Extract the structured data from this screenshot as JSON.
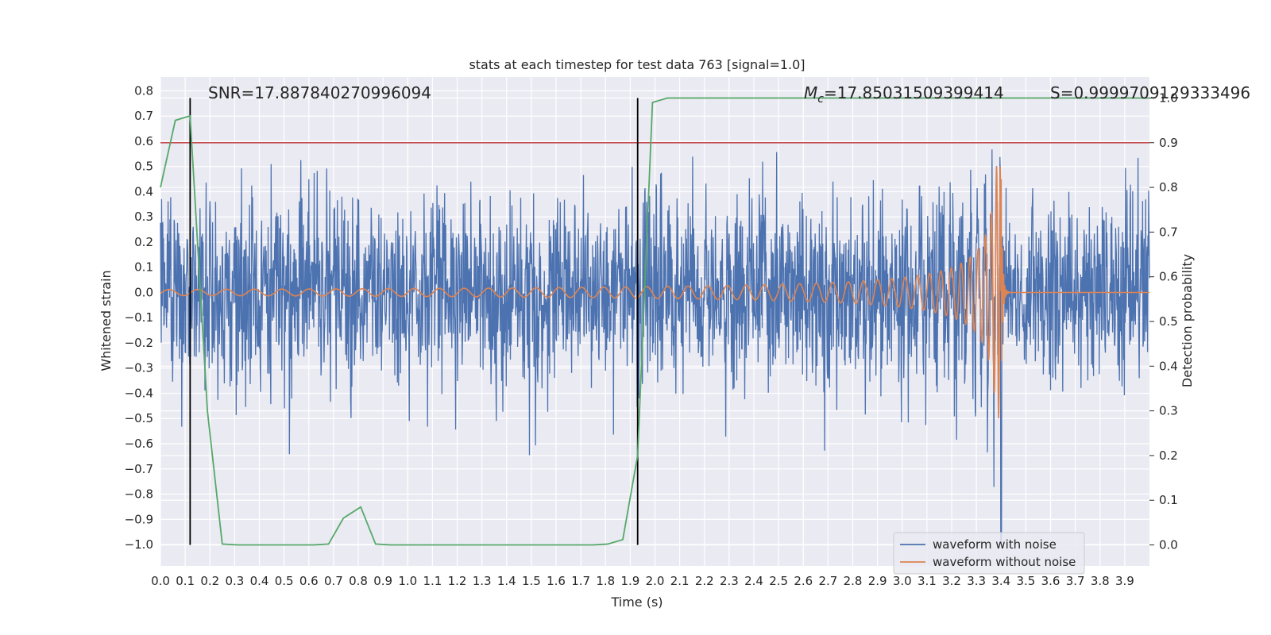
{
  "chart_data": {
    "type": "line",
    "title": "stats at each timestep for test data 763 [signal=1.0]",
    "xlabel": "Time (s)",
    "ylabel": "Whitened strain",
    "y2label": "Detection probability",
    "xlim": [
      0.0,
      4.0
    ],
    "ylim": [
      -1.085,
      0.855
    ],
    "y2lim": [
      -0.047,
      1.047
    ],
    "grid": true,
    "legend_position": "lower-right",
    "x_ticks": [
      "0.0",
      "0.1",
      "0.2",
      "0.3",
      "0.4",
      "0.5",
      "0.6",
      "0.7",
      "0.8",
      "0.9",
      "1.0",
      "1.1",
      "1.2",
      "1.3",
      "1.4",
      "1.5",
      "1.6",
      "1.7",
      "1.8",
      "1.9",
      "2.0",
      "2.1",
      "2.2",
      "2.3",
      "2.4",
      "2.5",
      "2.6",
      "2.7",
      "2.8",
      "2.9",
      "3.0",
      "3.1",
      "3.2",
      "3.3",
      "3.4",
      "3.5",
      "3.6",
      "3.7",
      "3.8",
      "3.9"
    ],
    "y_ticks": [
      "0.8",
      "0.7",
      "0.6",
      "0.5",
      "0.4",
      "0.3",
      "0.2",
      "0.1",
      "0.0",
      "−0.1",
      "−0.2",
      "−0.3",
      "−0.4",
      "−0.5",
      "−0.6",
      "−0.7",
      "−0.8",
      "−0.9",
      "−1.0"
    ],
    "y2_ticks": [
      "1.0",
      "0.9",
      "0.8",
      "0.7",
      "0.6",
      "0.5",
      "0.4",
      "0.3",
      "0.2",
      "0.1",
      "0.0"
    ],
    "annotations": {
      "snr": "SNR=17.887840270996094",
      "mc_symbol": "M",
      "mc_sub": "c",
      "mc_value": "=17.85031509399414",
      "s": "S=0.9999709129333496"
    },
    "vertical_lines_x": [
      0.12,
      1.93
    ],
    "threshold_y2": 0.9,
    "series": [
      {
        "name": "waveform with noise",
        "color": "#4c72b0",
        "kind": "noise",
        "sigma": 0.19,
        "spike": {
          "x": 3.4,
          "value": -1.0
        }
      },
      {
        "name": "waveform without noise",
        "color": "#dd8452",
        "kind": "chirp",
        "amplitude_start": 0.012,
        "merger_x": 3.4,
        "peak_amplitude": 0.5,
        "ringdown_value": 0.0
      },
      {
        "name": "",
        "color": "#55a868",
        "axis": "y2",
        "x": [
          0.0,
          0.06,
          0.12,
          0.19,
          0.25,
          0.31,
          0.37,
          0.43,
          0.5,
          0.56,
          0.62,
          0.68,
          0.74,
          0.81,
          0.87,
          0.93,
          1.0,
          1.2,
          1.4,
          1.6,
          1.75,
          1.81,
          1.87,
          1.93,
          1.99,
          2.05,
          2.5,
          3.0,
          3.5,
          4.0
        ],
        "values": [
          0.8,
          0.95,
          0.96,
          0.3,
          0.002,
          0.0,
          0.0,
          0.0,
          0.0,
          0.0,
          0.0,
          0.002,
          0.06,
          0.085,
          0.002,
          0.0,
          0.0,
          0.0,
          0.0,
          0.0,
          0.0,
          0.002,
          0.012,
          0.2,
          0.99,
          1.0,
          1.0,
          1.0,
          1.0,
          1.0
        ]
      },
      {
        "name": "",
        "color": "#c44e52",
        "kind": "hline",
        "axis": "y2",
        "value": 0.9
      }
    ]
  }
}
